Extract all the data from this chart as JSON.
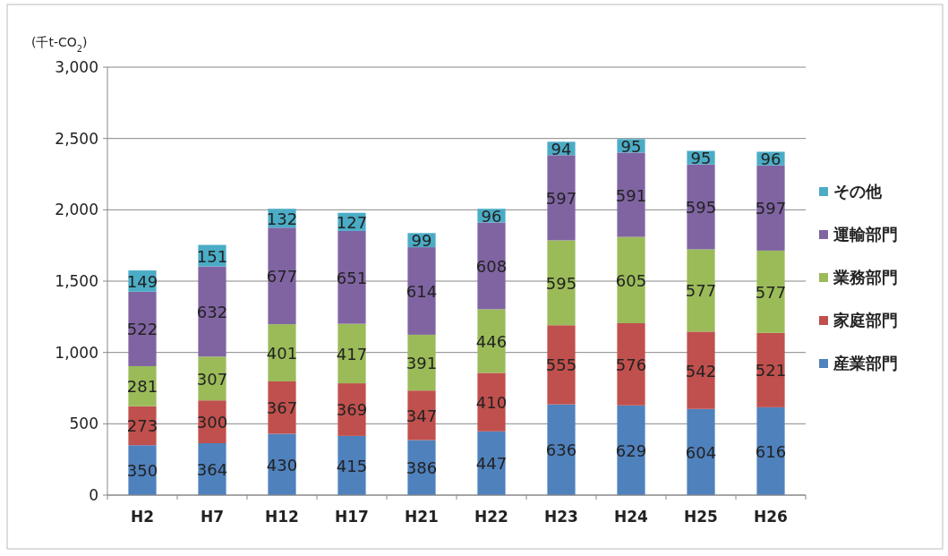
{
  "chart_data": {
    "type": "bar",
    "stacked": true,
    "ylabel": "(千t-CO$_{2}$)",
    "categories": [
      "H2",
      "H7",
      "H12",
      "H17",
      "H21",
      "H22",
      "H23",
      "H24",
      "H25",
      "H26"
    ],
    "series": [
      {
        "name": "産業部門",
        "color": "#4f81bd",
        "values": [
          350,
          364,
          430,
          415,
          386,
          447,
          636,
          629,
          604,
          616
        ]
      },
      {
        "name": "家庭部門",
        "color": "#c0504d",
        "values": [
          273,
          300,
          367,
          369,
          347,
          410,
          555,
          576,
          542,
          521
        ]
      },
      {
        "name": "業務部門",
        "color": "#9bbb59",
        "values": [
          281,
          307,
          401,
          417,
          391,
          446,
          595,
          605,
          577,
          577
        ]
      },
      {
        "name": "運輸部門",
        "color": "#8064a2",
        "values": [
          522,
          632,
          677,
          651,
          614,
          608,
          597,
          591,
          595,
          597
        ]
      },
      {
        "name": "その他",
        "color": "#4bacc6",
        "values": [
          149,
          151,
          132,
          127,
          99,
          96,
          94,
          95,
          95,
          96
        ]
      }
    ],
    "ylim": [
      0,
      3000
    ],
    "yticks": [
      0,
      500,
      {
        "value": 1000,
        "label": "1,000"
      },
      {
        "value": 1500,
        "label": "1,500"
      },
      {
        "value": 2000,
        "label": "2,000"
      },
      {
        "value": 2500,
        "label": "2,500"
      },
      {
        "value": 3000,
        "label": "3,000"
      }
    ],
    "grid": "y",
    "legend": "right",
    "data_labels": true
  }
}
